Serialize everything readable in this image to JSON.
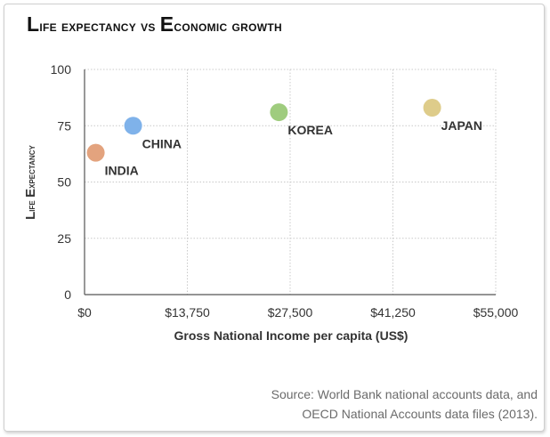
{
  "title_parts": [
    {
      "text": "L",
      "big": true
    },
    {
      "text": "ife expectancy vs ",
      "big": false
    },
    {
      "text": "E",
      "big": true
    },
    {
      "text": "conomic growth",
      "big": false
    }
  ],
  "source_lines": [
    "Source: World Bank national accounts data, and",
    "OECD National Accounts data files (2013)."
  ],
  "colors": {
    "india": "#e3a37e",
    "china": "#7fb2ea",
    "korea": "#9fcc7e",
    "japan": "#decc8a",
    "axis": "#555555",
    "grid": "#c9c9c9",
    "text": "#333333"
  },
  "chart_data": {
    "type": "scatter",
    "title": "Life expectancy vs Economic growth",
    "xlabel": "Gross National Income per capita (US$)",
    "ylabel": "Life Expectancy",
    "xlim": [
      0,
      55000
    ],
    "ylim": [
      0,
      100
    ],
    "x_ticks": [
      0,
      13750,
      27500,
      41250,
      55000
    ],
    "x_tick_labels": [
      "$0",
      "$13,750",
      "$27,500",
      "$41,250",
      "$55,000"
    ],
    "y_ticks": [
      0,
      25,
      50,
      75,
      100
    ],
    "y_tick_labels": [
      "0",
      "25",
      "50",
      "75",
      "100"
    ],
    "grid": true,
    "points": [
      {
        "label": "INDIA",
        "x": 1500,
        "y": 63,
        "color": "#e3a37e"
      },
      {
        "label": "CHINA",
        "x": 6500,
        "y": 75,
        "color": "#7fb2ea"
      },
      {
        "label": "KOREA",
        "x": 26000,
        "y": 81,
        "color": "#9fcc7e"
      },
      {
        "label": "JAPAN",
        "x": 46500,
        "y": 83,
        "color": "#decc8a"
      }
    ]
  }
}
